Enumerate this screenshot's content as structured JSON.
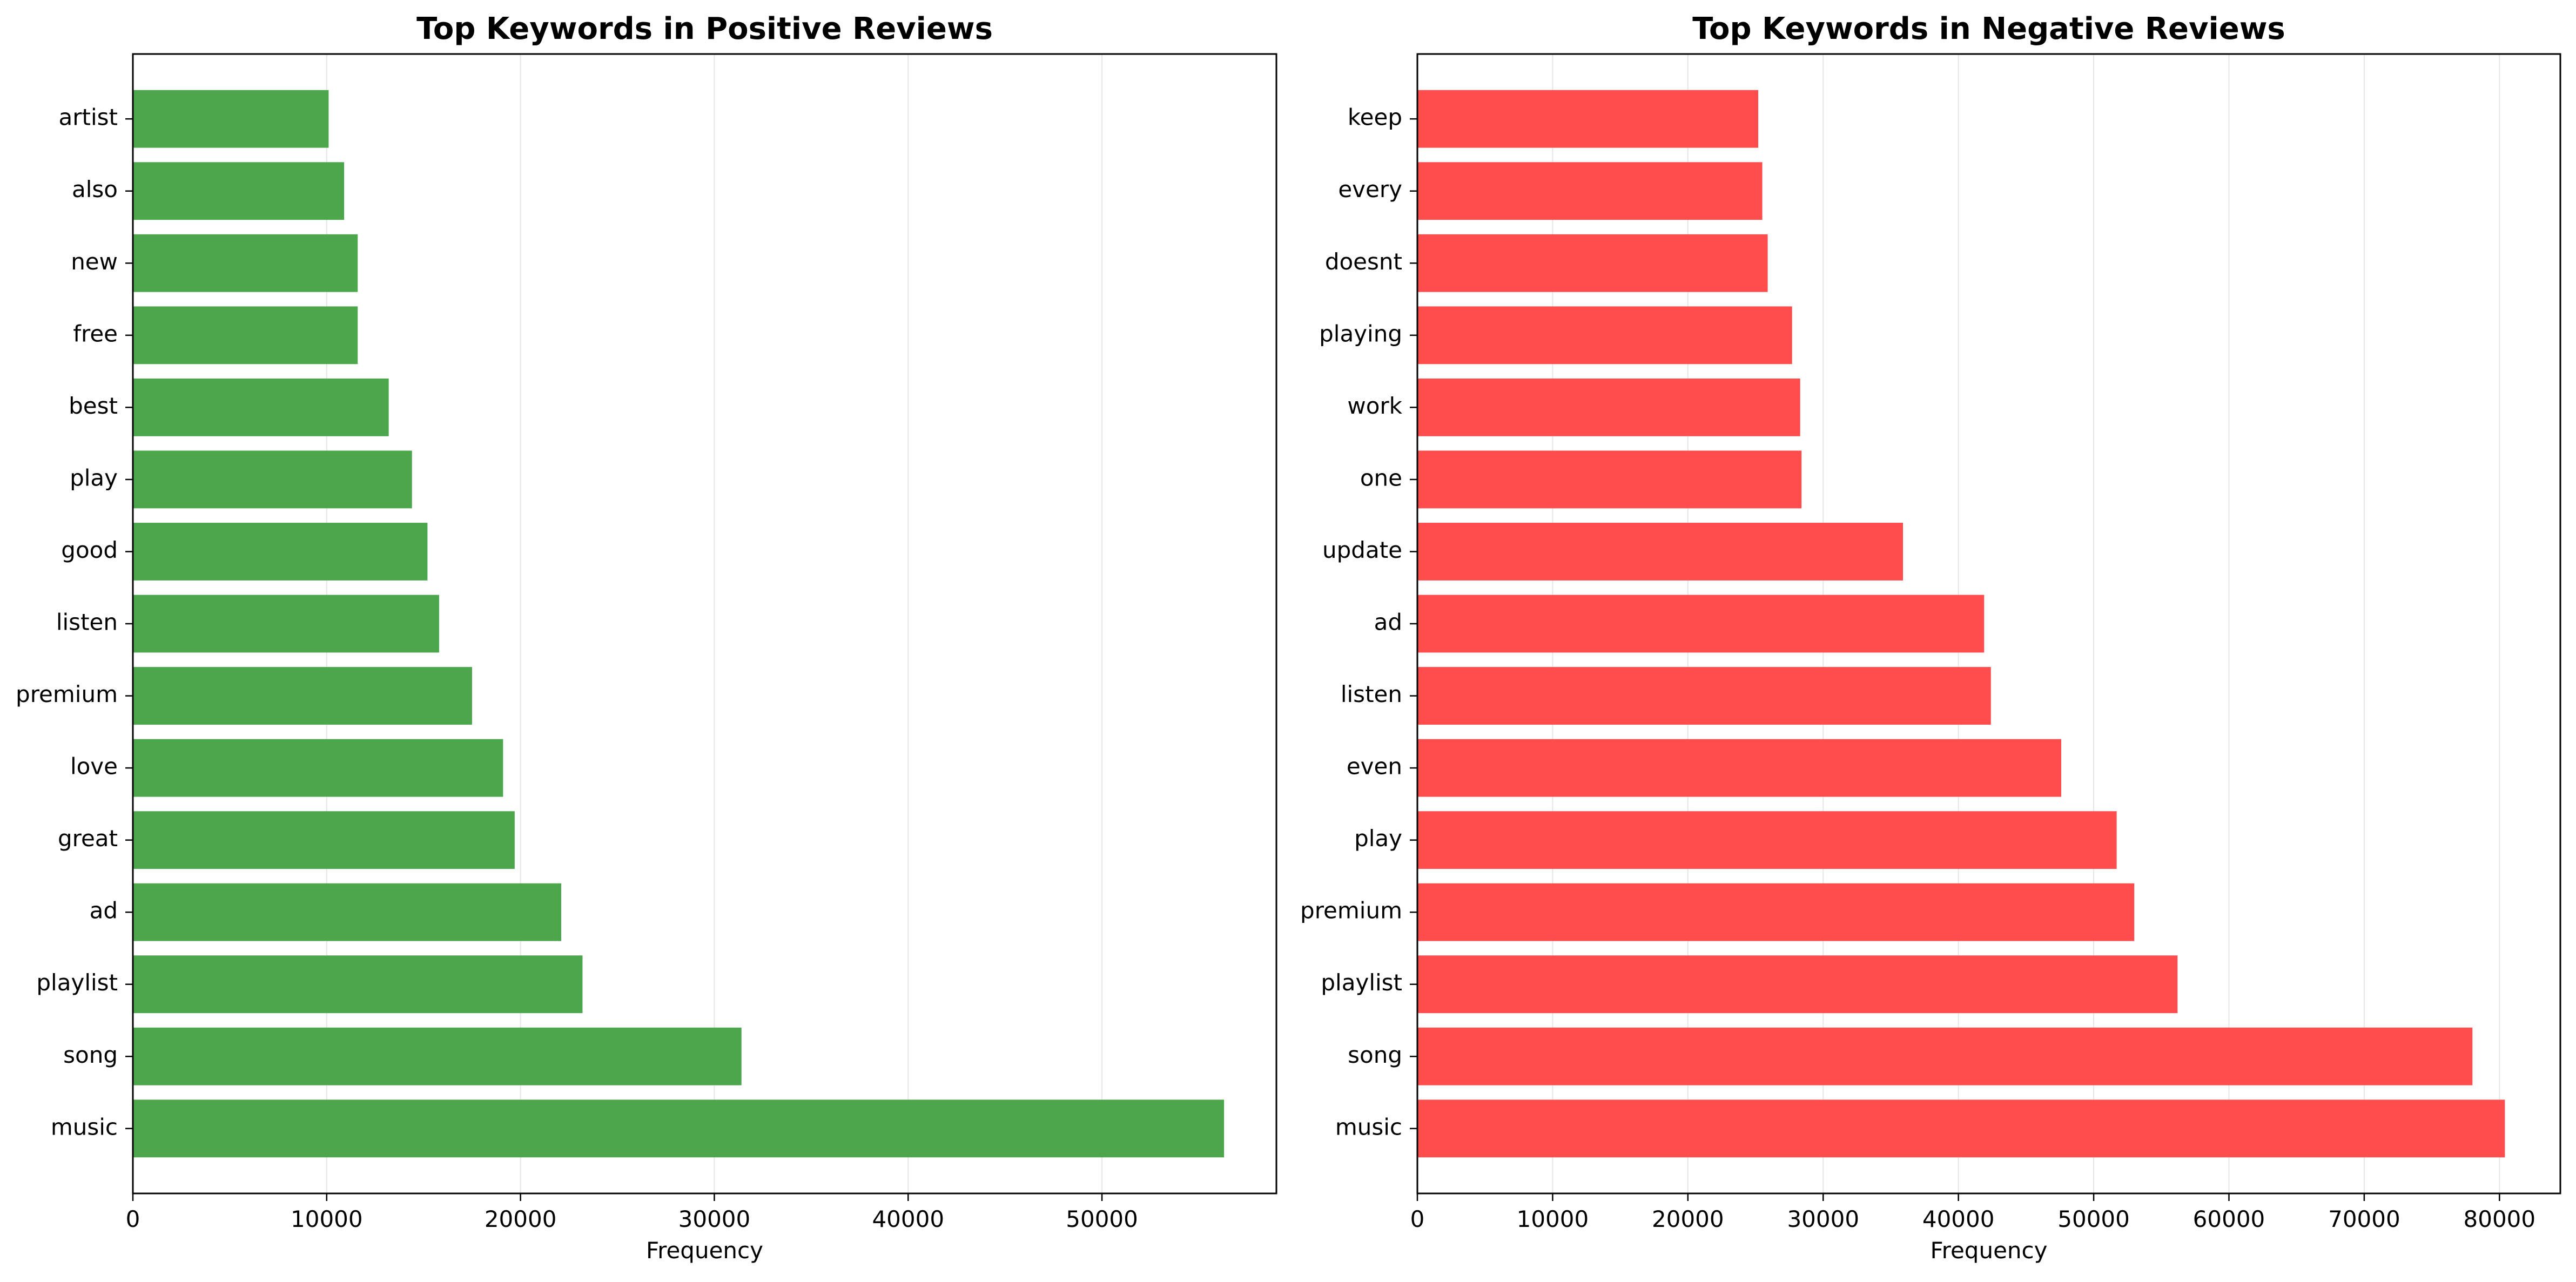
{
  "chart_data": [
    {
      "type": "bar",
      "orientation": "horizontal",
      "title": "Top Keywords in Positive Reviews",
      "xlabel": "Frequency",
      "ylabel": "",
      "categories": [
        "music",
        "song",
        "playlist",
        "ad",
        "great",
        "love",
        "premium",
        "listen",
        "good",
        "play",
        "best",
        "free",
        "new",
        "also",
        "artist"
      ],
      "values": [
        56300,
        31400,
        23200,
        22100,
        19700,
        19100,
        17500,
        15800,
        15200,
        14400,
        13200,
        11600,
        11600,
        10900,
        10100
      ],
      "xlim": [
        0,
        59000
      ],
      "xticks": [
        0,
        10000,
        20000,
        30000,
        40000,
        50000
      ],
      "xtick_labels": [
        "0",
        "10000",
        "20000",
        "30000",
        "40000",
        "50000"
      ],
      "color": "#4ca64c",
      "grid": "x"
    },
    {
      "type": "bar",
      "orientation": "horizontal",
      "title": "Top Keywords in Negative Reviews",
      "xlabel": "Frequency",
      "ylabel": "",
      "categories": [
        "music",
        "song",
        "playlist",
        "premium",
        "play",
        "even",
        "listen",
        "ad",
        "update",
        "one",
        "work",
        "playing",
        "doesnt",
        "every",
        "keep"
      ],
      "values": [
        80400,
        78000,
        56200,
        53000,
        51700,
        47600,
        42400,
        41900,
        35900,
        28400,
        28300,
        27700,
        25900,
        25500,
        25200
      ],
      "xlim": [
        0,
        84500
      ],
      "xticks": [
        0,
        10000,
        20000,
        30000,
        40000,
        50000,
        60000,
        70000,
        80000
      ],
      "xtick_labels": [
        "0",
        "10000",
        "20000",
        "30000",
        "40000",
        "50000",
        "60000",
        "70000",
        "80000"
      ],
      "color": "#ff4c4c",
      "grid": "x"
    }
  ]
}
